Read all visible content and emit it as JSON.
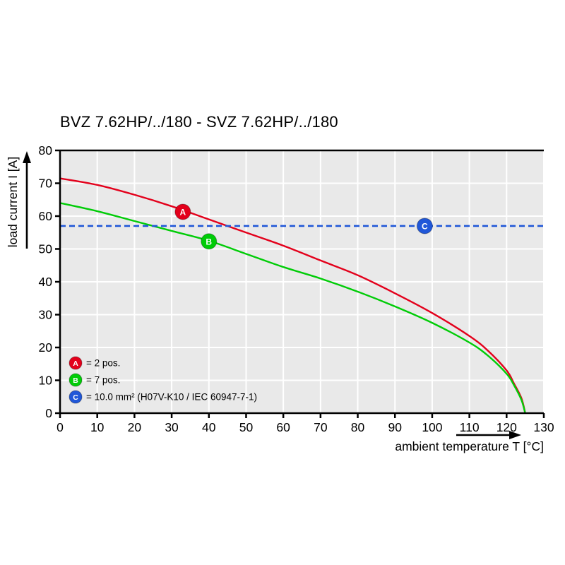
{
  "chart_data": {
    "type": "line",
    "title": "BVZ 7.62HP/../180 - SVZ 7.62HP/../180",
    "xlabel": "ambient temperature T [°C]",
    "ylabel": "load current I [A]",
    "xlim": [
      0,
      130
    ],
    "ylim": [
      0,
      80
    ],
    "xticks": [
      0,
      10,
      20,
      30,
      40,
      50,
      60,
      70,
      80,
      90,
      100,
      110,
      120,
      130
    ],
    "yticks": [
      0,
      10,
      20,
      30,
      40,
      50,
      60,
      70,
      80
    ],
    "grid": true,
    "legend_position": "bottom-left",
    "colors": {
      "plot_background": "#e9e9e9",
      "grid": "#ffffff",
      "axis": "#000000",
      "series_a_red": "#e3001b",
      "series_b_green": "#00cc07",
      "reference_blue": "#2057d8"
    },
    "series": [
      {
        "name": "A",
        "legend_label": "= 2 pos.",
        "color": "#e3001b",
        "marker_label": "A",
        "marker_at": {
          "x": 33,
          "y": 61.3
        },
        "points": [
          [
            0,
            71.5
          ],
          [
            10,
            69.5
          ],
          [
            20,
            66.5
          ],
          [
            30,
            63
          ],
          [
            40,
            59
          ],
          [
            50,
            55
          ],
          [
            60,
            51
          ],
          [
            70,
            46.5
          ],
          [
            80,
            42
          ],
          [
            90,
            36.5
          ],
          [
            100,
            30.5
          ],
          [
            110,
            23.5
          ],
          [
            115,
            19
          ],
          [
            120,
            13
          ],
          [
            122,
            9
          ],
          [
            124,
            4.5
          ],
          [
            125,
            0
          ]
        ]
      },
      {
        "name": "B",
        "legend_label": "= 7 pos.",
        "color": "#00cc07",
        "marker_label": "B",
        "marker_at": {
          "x": 40,
          "y": 52.3
        },
        "points": [
          [
            0,
            64
          ],
          [
            10,
            61.5
          ],
          [
            20,
            58.5
          ],
          [
            30,
            55.5
          ],
          [
            40,
            52.5
          ],
          [
            50,
            48.5
          ],
          [
            60,
            44.5
          ],
          [
            70,
            41
          ],
          [
            80,
            37
          ],
          [
            90,
            32.5
          ],
          [
            100,
            27.5
          ],
          [
            110,
            21.5
          ],
          [
            115,
            17.5
          ],
          [
            120,
            12
          ],
          [
            122,
            8.5
          ],
          [
            124,
            4
          ],
          [
            125,
            0
          ]
        ]
      }
    ],
    "reference_line": {
      "name": "C",
      "legend_label": "= 10.0 mm² (H07V-K10 / IEC 60947-7-1)",
      "color": "#2057d8",
      "style": "dashed",
      "y": 57,
      "marker_label": "C",
      "marker_at": {
        "x": 98,
        "y": 57
      }
    },
    "legend": [
      {
        "symbol": "A",
        "color": "#e3001b",
        "label": "= 2 pos."
      },
      {
        "symbol": "B",
        "color": "#00cc07",
        "label": "= 7 pos."
      },
      {
        "symbol": "C",
        "color": "#2057d8",
        "label": "= 10.0 mm² (H07V-K10 / IEC 60947-7-1)"
      }
    ]
  }
}
